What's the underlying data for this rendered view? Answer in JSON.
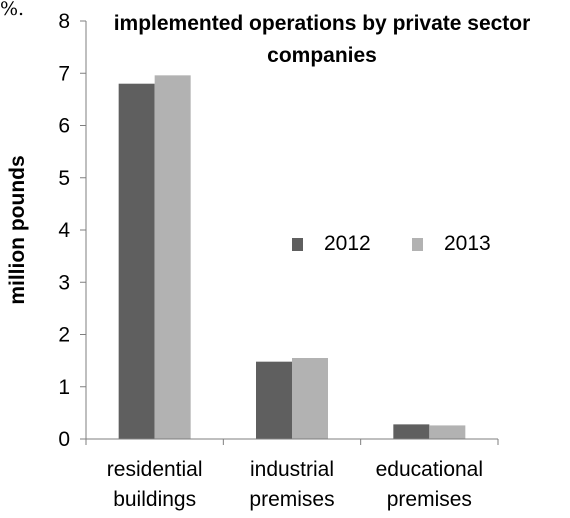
{
  "page": {
    "top_fragment": "%."
  },
  "chart_data": {
    "type": "bar",
    "title": "implemented operations by private sector companies",
    "title_lines": [
      "implemented operations by private sector",
      "companies"
    ],
    "xlabel": "",
    "ylabel": "million pounds",
    "ylim": [
      0,
      8
    ],
    "yticks": [
      "0",
      "1",
      "2",
      "3",
      "4",
      "5",
      "6",
      "7",
      "8"
    ],
    "categories": [
      "residential buildings",
      "industrial premises",
      "educational premises"
    ],
    "category_lines": [
      [
        "residential",
        "buildings"
      ],
      [
        "industrial",
        "premises"
      ],
      [
        "educational",
        "premises"
      ]
    ],
    "series": [
      {
        "name": "2012",
        "values": [
          6.8,
          1.48,
          0.28
        ],
        "color": "#5f5f5f"
      },
      {
        "name": "2013",
        "values": [
          6.96,
          1.55,
          0.26
        ],
        "color": "#b2b2b2"
      }
    ],
    "legend_position": "right",
    "grid": false
  }
}
